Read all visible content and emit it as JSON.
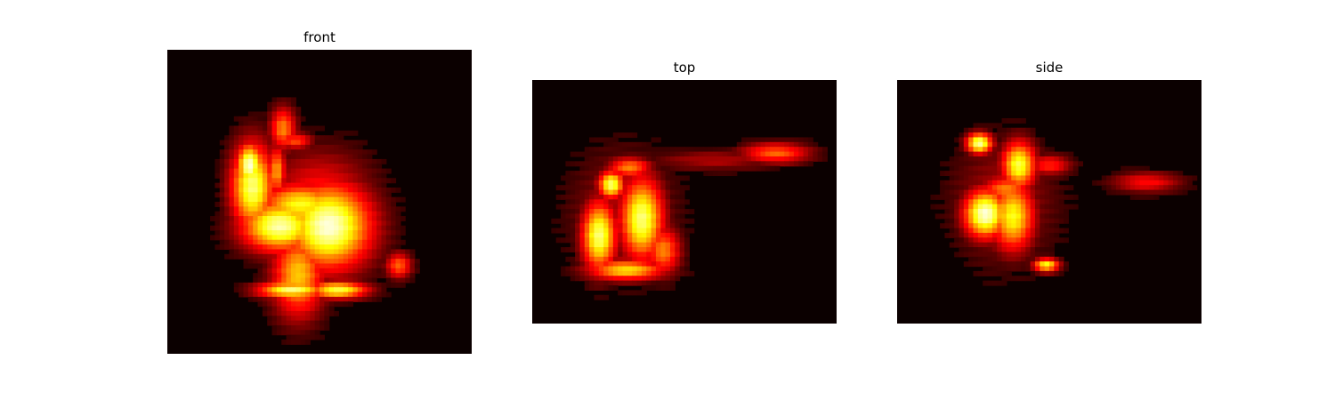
{
  "chart_data": [
    {
      "type": "heatmap",
      "title": "front",
      "colormap": "hot",
      "background_color": "#0b0000",
      "axes": "off",
      "grid": false,
      "blobs": [
        {
          "x": 0.28,
          "y": 0.45,
          "sx": 0.05,
          "sy": 0.1,
          "v": 0.85
        },
        {
          "x": 0.27,
          "y": 0.38,
          "sx": 0.03,
          "sy": 0.05,
          "v": 0.95
        },
        {
          "x": 0.37,
          "y": 0.58,
          "sx": 0.09,
          "sy": 0.06,
          "v": 0.9
        },
        {
          "x": 0.53,
          "y": 0.58,
          "sx": 0.1,
          "sy": 0.1,
          "v": 0.95
        },
        {
          "x": 0.44,
          "y": 0.51,
          "sx": 0.1,
          "sy": 0.05,
          "v": 0.75
        },
        {
          "x": 0.43,
          "y": 0.74,
          "sx": 0.06,
          "sy": 0.1,
          "v": 0.65
        },
        {
          "x": 0.41,
          "y": 0.79,
          "sx": 0.08,
          "sy": 0.02,
          "v": 0.85
        },
        {
          "x": 0.56,
          "y": 0.79,
          "sx": 0.07,
          "sy": 0.02,
          "v": 0.8
        },
        {
          "x": 0.38,
          "y": 0.26,
          "sx": 0.03,
          "sy": 0.05,
          "v": 0.55
        },
        {
          "x": 0.42,
          "y": 0.3,
          "sx": 0.04,
          "sy": 0.02,
          "v": 0.45
        },
        {
          "x": 0.36,
          "y": 0.4,
          "sx": 0.02,
          "sy": 0.06,
          "v": 0.6
        },
        {
          "x": 0.76,
          "y": 0.71,
          "sx": 0.03,
          "sy": 0.03,
          "v": 0.5
        },
        {
          "x": 0.5,
          "y": 0.47,
          "sx": 0.12,
          "sy": 0.1,
          "v": 0.35
        }
      ]
    },
    {
      "type": "heatmap",
      "title": "top",
      "colormap": "hot",
      "background_color": "#0b0000",
      "axes": "off",
      "grid": false,
      "blobs": [
        {
          "x": 0.26,
          "y": 0.43,
          "sx": 0.03,
          "sy": 0.04,
          "v": 0.85
        },
        {
          "x": 0.32,
          "y": 0.36,
          "sx": 0.05,
          "sy": 0.03,
          "v": 0.55
        },
        {
          "x": 0.22,
          "y": 0.64,
          "sx": 0.04,
          "sy": 0.1,
          "v": 0.85
        },
        {
          "x": 0.36,
          "y": 0.57,
          "sx": 0.05,
          "sy": 0.12,
          "v": 0.85
        },
        {
          "x": 0.31,
          "y": 0.78,
          "sx": 0.09,
          "sy": 0.03,
          "v": 0.7
        },
        {
          "x": 0.43,
          "y": 0.7,
          "sx": 0.04,
          "sy": 0.07,
          "v": 0.55
        },
        {
          "x": 0.8,
          "y": 0.3,
          "sx": 0.08,
          "sy": 0.03,
          "v": 0.5
        },
        {
          "x": 0.6,
          "y": 0.33,
          "sx": 0.15,
          "sy": 0.03,
          "v": 0.22
        },
        {
          "x": 0.3,
          "y": 0.55,
          "sx": 0.12,
          "sy": 0.18,
          "v": 0.22
        }
      ]
    },
    {
      "type": "heatmap",
      "title": "side",
      "colormap": "hot",
      "background_color": "#0b0000",
      "axes": "off",
      "grid": false,
      "blobs": [
        {
          "x": 0.27,
          "y": 0.26,
          "sx": 0.03,
          "sy": 0.03,
          "v": 0.9
        },
        {
          "x": 0.4,
          "y": 0.35,
          "sx": 0.04,
          "sy": 0.07,
          "v": 0.8
        },
        {
          "x": 0.29,
          "y": 0.55,
          "sx": 0.05,
          "sy": 0.07,
          "v": 0.95
        },
        {
          "x": 0.38,
          "y": 0.56,
          "sx": 0.05,
          "sy": 0.1,
          "v": 0.75
        },
        {
          "x": 0.36,
          "y": 0.45,
          "sx": 0.06,
          "sy": 0.04,
          "v": 0.55
        },
        {
          "x": 0.5,
          "y": 0.35,
          "sx": 0.05,
          "sy": 0.03,
          "v": 0.4
        },
        {
          "x": 0.49,
          "y": 0.76,
          "sx": 0.03,
          "sy": 0.02,
          "v": 0.75
        },
        {
          "x": 0.82,
          "y": 0.42,
          "sx": 0.08,
          "sy": 0.03,
          "v": 0.35
        },
        {
          "x": 0.35,
          "y": 0.5,
          "sx": 0.12,
          "sy": 0.18,
          "v": 0.22
        }
      ]
    }
  ]
}
